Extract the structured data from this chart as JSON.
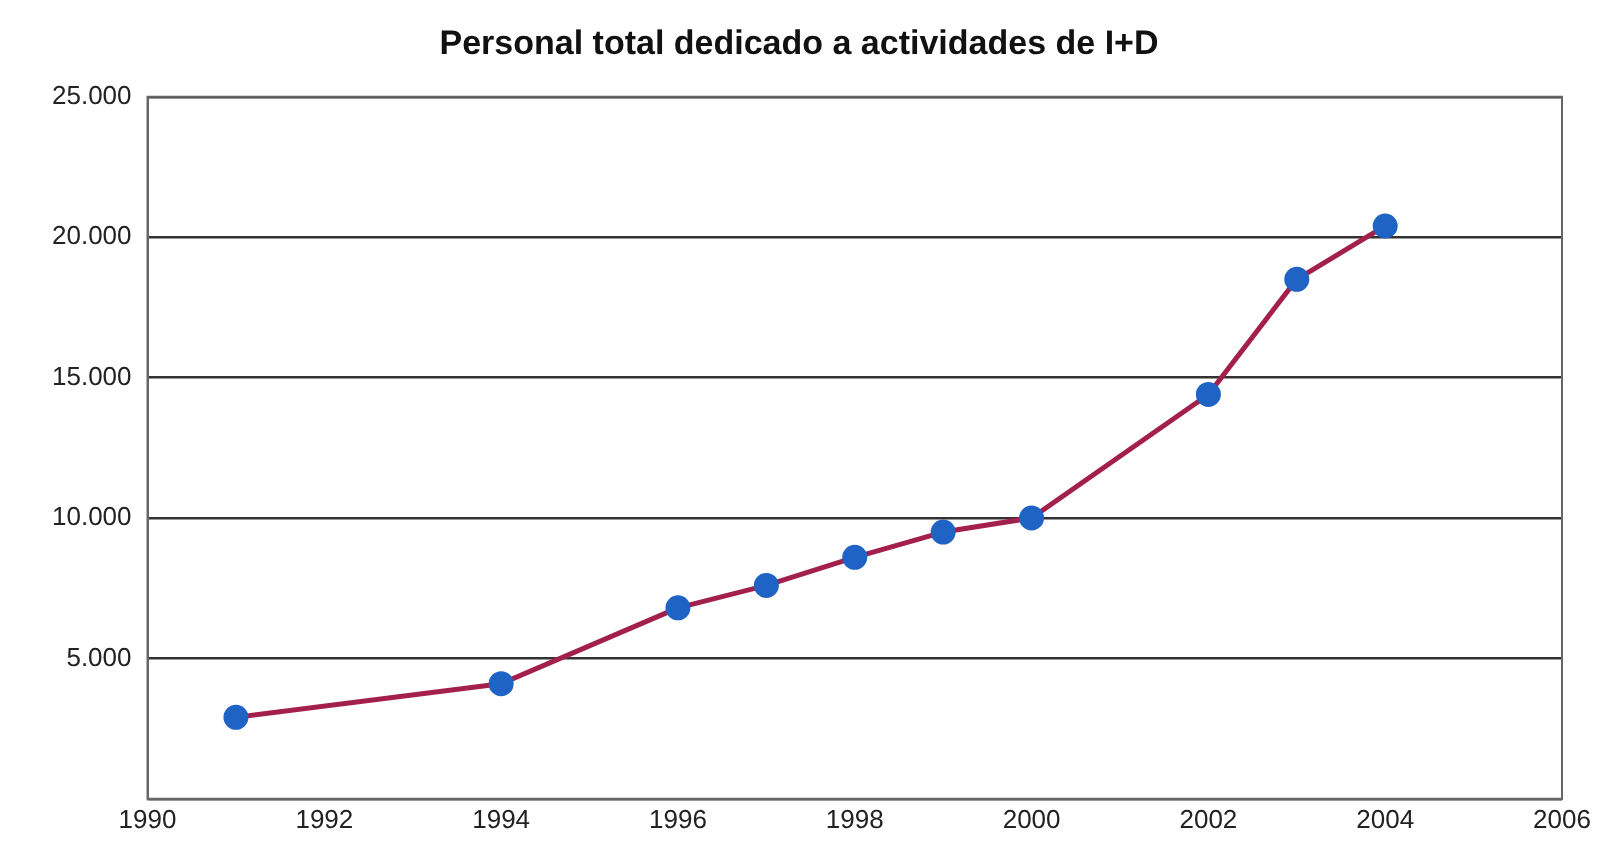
{
  "chart_data": {
    "type": "line",
    "title": "Personal total dedicado a actividades de I+D",
    "x": [
      1991,
      1994,
      1996,
      1997,
      1998,
      1999,
      2000,
      2002,
      2003,
      2004
    ],
    "series": [
      {
        "color": "#a3204d",
        "colors": [
          "#1f63c4",
          "#1f63c4",
          "#1f63c4",
          "#1f63c4",
          "#1f63c4",
          "#1f63c4",
          "#1f63c4",
          "#1f63c4",
          "#1f63c4",
          "#1f63c4"
        ],
        "values": [
          2900,
          4100,
          6800,
          7600,
          8600,
          9500,
          10000,
          14400,
          18500,
          20400
        ]
      }
    ],
    "xlim": [
      1990,
      2006
    ],
    "xticks": [
      1990,
      1992,
      1994,
      1996,
      1998,
      2000,
      2002,
      2004,
      2006
    ],
    "ylim": [
      0,
      25000
    ],
    "yticks": [
      {
        "value": 0,
        "label": null
      },
      {
        "value": 5000,
        "label": "5.000"
      },
      {
        "value": 10000,
        "label": "10.000"
      },
      {
        "value": 15000,
        "label": "15.000"
      },
      {
        "value": 20000,
        "label": "20.000"
      },
      {
        "value": 25000,
        "label": "25.000"
      }
    ],
    "grid": "y",
    "marker": "circle",
    "line_style": "solid",
    "legend": false
  }
}
